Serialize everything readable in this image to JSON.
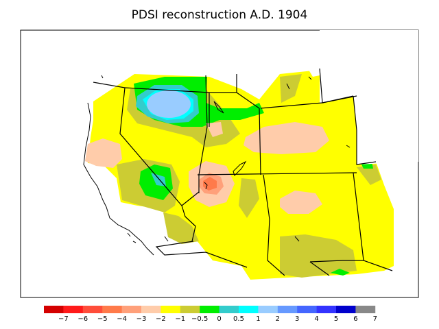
{
  "title": "PDSI reconstruction A.D. 1904",
  "legend": {
    "colors": [
      "#d40000",
      "#ff1a1a",
      "#ff4d3a",
      "#ff7a4a",
      "#ffa07a",
      "#ffccaa",
      "#ffff00",
      "#cccc33",
      "#00ee00",
      "#33cccc",
      "#00ffff",
      "#99ccff",
      "#6699ff",
      "#4466ff",
      "#3333ff",
      "#0000cc",
      "#888888"
    ],
    "labels": [
      "−7",
      "−6",
      "−5",
      "−4",
      "−3",
      "−2",
      "−1",
      "−0.5",
      "0",
      "0.5",
      "1",
      "2",
      "3",
      "4",
      "5",
      "6",
      "7"
    ]
  }
}
